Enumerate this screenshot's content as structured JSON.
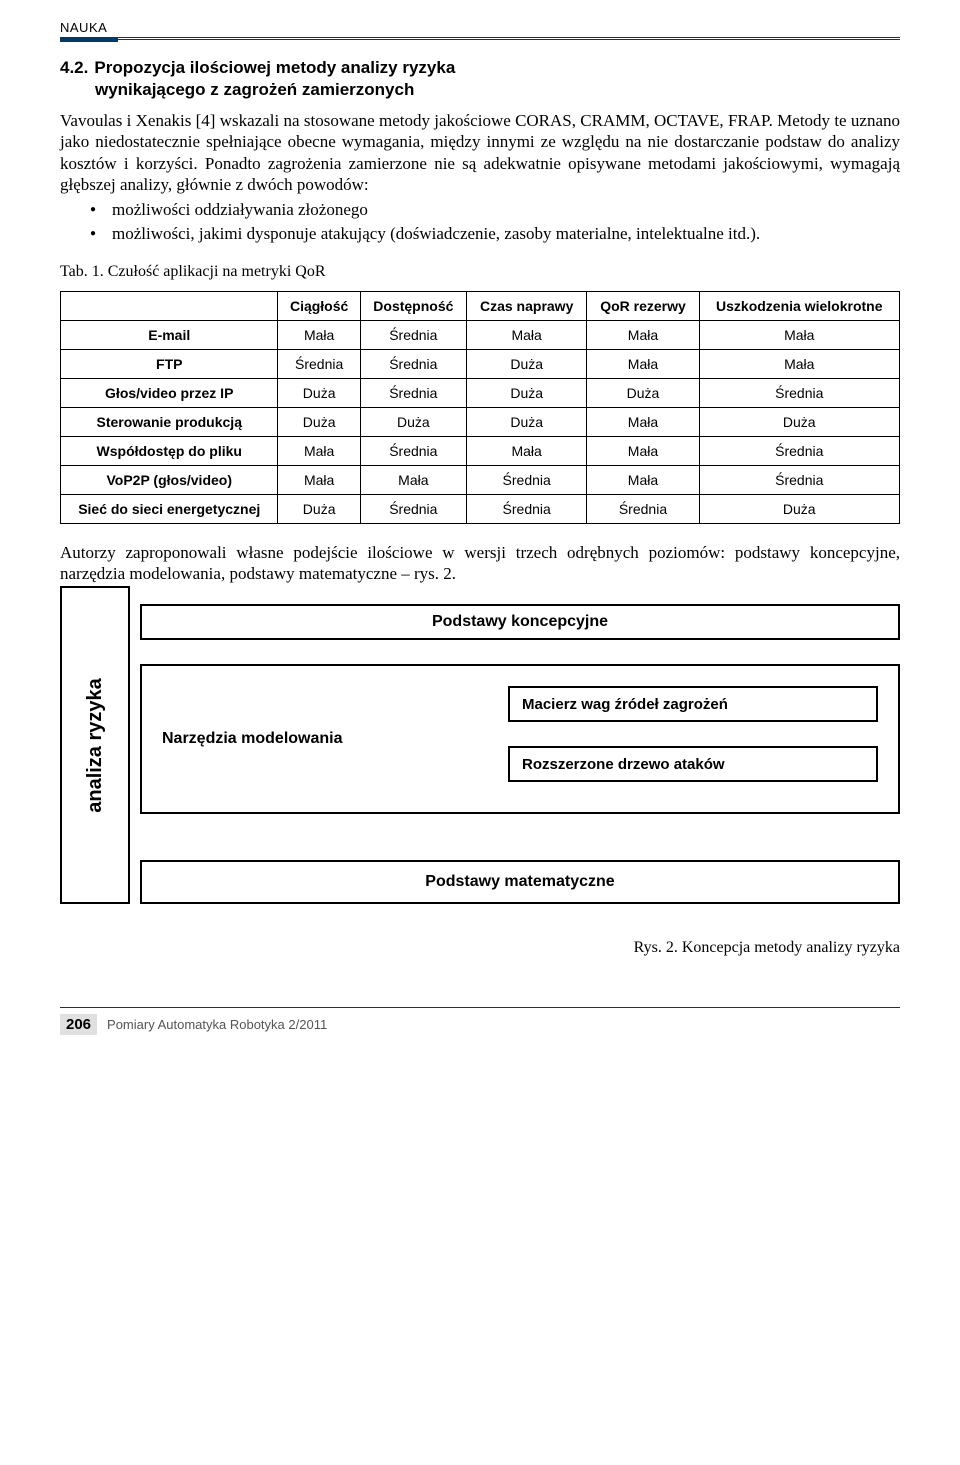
{
  "header": {
    "tag": "NAUKA"
  },
  "section": {
    "num": "4.2.",
    "title": "Propozycja ilościowej metody analizy ryzyka",
    "subtitle": "wynikającego z zagrożeń zamierzonych"
  },
  "paragraphs": {
    "p1": "Vavoulas i Xenakis [4] wskazali na stosowane metody jakościowe CORAS, CRAMM, OCTAVE, FRAP. Metody te uznano jako niedostatecznie spełniające obecne wymagania, między innymi ze względu na nie dostarczanie podstaw do analizy kosztów i korzyści. Ponadto zagrożenia zamierzone nie są adekwatnie opisywane metodami jakościowymi, wymagają głębszej analizy, głównie z dwóch powodów:"
  },
  "bullets": [
    "możliwości oddziaływania złożonego",
    "możliwości, jakimi dysponuje atakujący (doświadczenie, zasoby materialne, intelektualne itd.)."
  ],
  "table": {
    "caption": "Tab. 1. Czułość aplikacji na metryki QoR",
    "columns": [
      "",
      "Ciągłość",
      "Dostępność",
      "Czas naprawy",
      "QoR rezerwy",
      "Uszkodzenia wielokrotne"
    ],
    "rows": [
      [
        "E-mail",
        "Mała",
        "Średnia",
        "Mała",
        "Mała",
        "Mała"
      ],
      [
        "FTP",
        "Średnia",
        "Średnia",
        "Duża",
        "Mała",
        "Mała"
      ],
      [
        "Głos/video przez IP",
        "Duża",
        "Średnia",
        "Duża",
        "Duża",
        "Średnia"
      ],
      [
        "Sterowanie produkcją",
        "Duża",
        "Duża",
        "Duża",
        "Mała",
        "Duża"
      ],
      [
        "Współdostęp do pliku",
        "Mała",
        "Średnia",
        "Mała",
        "Mała",
        "Średnia"
      ],
      [
        "VoP2P (głos/video)",
        "Mała",
        "Mała",
        "Średnia",
        "Mała",
        "Średnia"
      ],
      [
        "Sieć do sieci energetycznej",
        "Duża",
        "Średnia",
        "Średnia",
        "Średnia",
        "Duża"
      ]
    ]
  },
  "paragraphs2": {
    "p2": "Autorzy zaproponowali własne podejście ilościowe w wersji trzech odrębnych poziomów: podstawy koncepcyjne, narzędzia modelowania, podstawy matematyczne – rys. 2."
  },
  "diagram": {
    "left": "analiza ryzyka",
    "top": "Podstawy koncepcyjne",
    "mid_label": "Narzędzia modelowania",
    "sub1": "Macierz wag źródeł zagrożeń",
    "sub2": "Rozszerzone drzewo ataków",
    "bottom": "Podstawy matematyczne"
  },
  "figure_caption": "Rys. 2. Koncepcja metody analizy ryzyka",
  "footer": {
    "page": "206",
    "journal": "Pomiary Automatyka Robotyka  2/2011"
  }
}
